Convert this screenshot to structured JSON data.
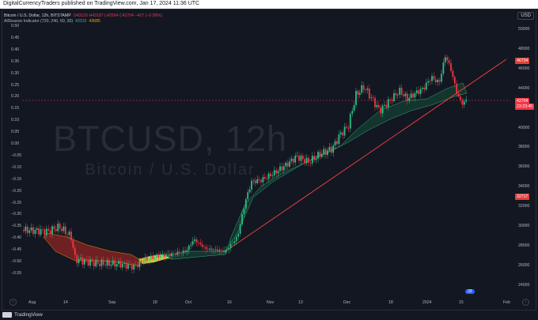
{
  "header": {
    "caption": "DigitalCurrencyTraders published on TradingView.com, Jan 17, 2024 11:36 UTC"
  },
  "legend": {
    "symbol": "Bitcoin / U.S. Dollar, 12h, BITSTAMP",
    "ohlc": "O43120  H43187  L42564  C42704  −427 (−0.99%)",
    "indicator_name": "AllSeason Indicator (720, 240, 60, 30)",
    "indicator_value_1": "43315",
    "indicator_value_2": "43685"
  },
  "watermark": {
    "ticker": "BTCUSD, 12h",
    "name": "Bitcoin / U.S. Dollar"
  },
  "currency_button": "USD",
  "left_axis_ticks": [
    "0.50",
    "0.45",
    "0.40",
    "0.35",
    "0.30",
    "0.25",
    "0.20",
    "0.15",
    "0.10",
    "0.05",
    "0.00",
    "−0.05",
    "−0.10",
    "−0.15",
    "−0.20",
    "−0.25",
    "−0.30",
    "−0.35",
    "−0.40",
    "−0.45",
    "−0.50",
    "−0.55"
  ],
  "right_axis_ticks": [
    "50000",
    "48000",
    "46000",
    "44000",
    "42000",
    "40000",
    "38000",
    "36000",
    "34000",
    "32000",
    "30000",
    "28000",
    "26000",
    "24000"
  ],
  "right_axis_labels": {
    "upper": "46734",
    "current": "42704",
    "current_time": "23:23:45",
    "lower": "32717"
  },
  "time_axis_ticks": [
    "Aug",
    "14",
    "Sep",
    "18",
    "Oct",
    "16",
    "Nov",
    "13",
    "Dec",
    "18",
    "2024",
    "15",
    "Feb"
  ],
  "footer": {
    "brand": "TradingView",
    "badge": "33"
  },
  "colors": {
    "background": "#131722",
    "candle_up": "#2ebd85",
    "candle_down": "#f23645",
    "trendline": "#e0413a",
    "band_fill_green": "#15392f",
    "band_fill_red": "#7a2222",
    "band_fill_yellow": "#e6d23a"
  }
}
